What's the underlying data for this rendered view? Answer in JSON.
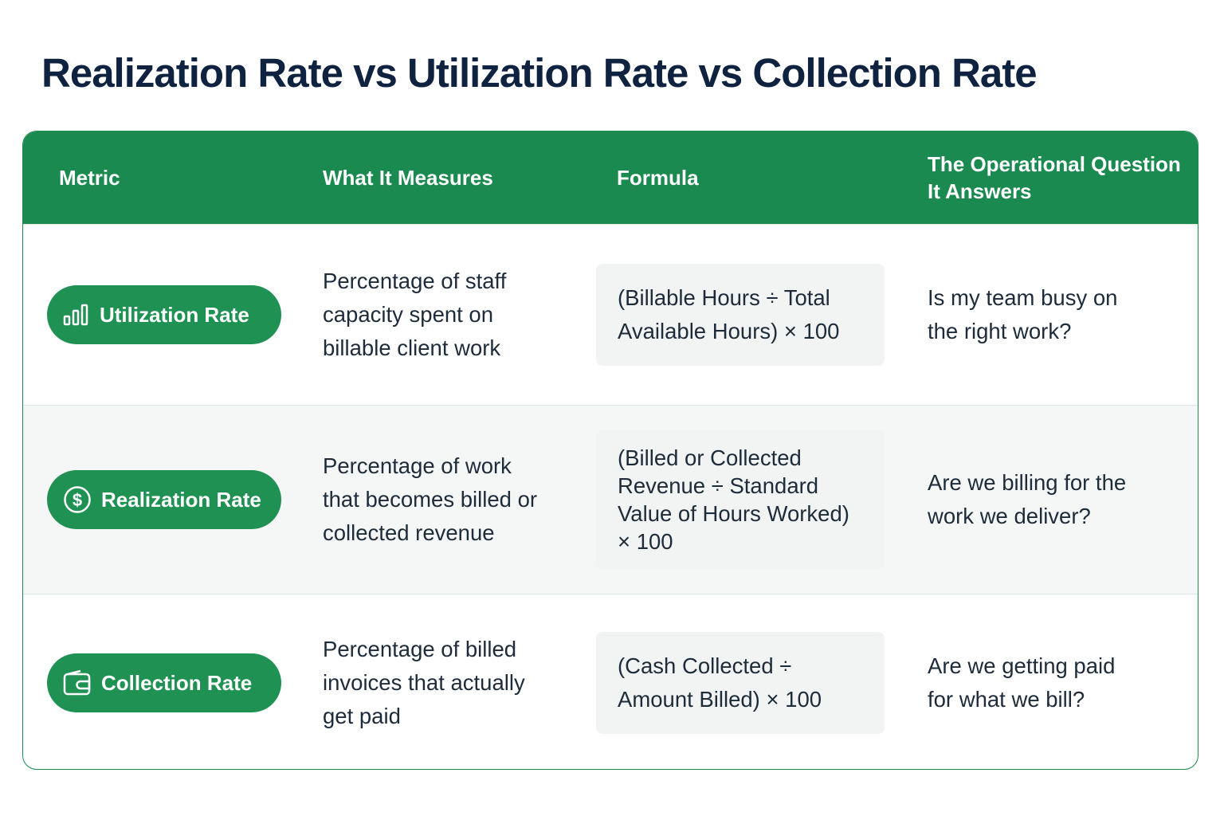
{
  "title": "Realization Rate vs Utilization Rate vs Collection Rate",
  "table": {
    "header": [
      "Metric",
      "What It Measures",
      "Formula",
      "The Operational Question It Answers"
    ],
    "rows": [
      [
        "Utilization Rate",
        "Percentage of staff capacity spent on billable client work",
        "(Billable Hours ÷ Total Available Hours) × 100",
        "Is my team busy on the right work?"
      ],
      [
        "Realization Rate",
        "Percentage of work that becomes billed or collected revenue",
        "(Billed or Collected Revenue ÷ Standard Value of Hours Worked) × 100",
        "Are we billing for the work we deliver?"
      ],
      [
        "Collection Rate",
        "Percentage of billed invoices that actually get paid",
        "(Cash Collected ÷ Amount Billed) × 100",
        "Are we getting paid for what we bill?"
      ]
    ]
  }
}
